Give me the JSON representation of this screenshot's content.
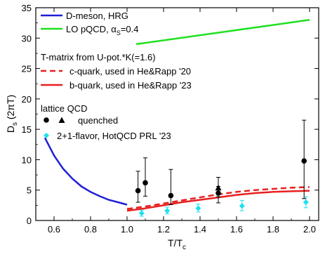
{
  "chart_data": {
    "type": "line",
    "title": "",
    "ylabel_main": "D",
    "ylabel_sub": "s",
    "ylabel_rest": " (2πT)",
    "xlabel_main": "T/T",
    "xlabel_sub": "c",
    "xlim": [
      0.5,
      2.05
    ],
    "ylim": [
      0,
      35
    ],
    "xticks": [
      0.6,
      0.8,
      1.0,
      1.2,
      1.4,
      1.6,
      1.8,
      2.0
    ],
    "xtick_labels": [
      "0.6",
      "0.8",
      "1.0",
      "1.2",
      "1.4",
      "1.6",
      "1.8",
      "2.0"
    ],
    "yticks": [
      0,
      5,
      10,
      15,
      20,
      25,
      30,
      35
    ],
    "ytick_labels": [
      "0",
      "5",
      "10",
      "15",
      "20",
      "25",
      "30",
      "35"
    ],
    "legend": {
      "hrg_label": "D-meson, HRG",
      "lo_main": "LO pQCD, α",
      "lo_sub": "S",
      "lo_rest": "=0.4",
      "tmatrix_heading": "T-matrix from U-pot.*K(=1.6)",
      "c_label": "c-quark, used in He&Rapp '20",
      "b_label": "b-quark, used in He&Rapp '23",
      "lattice_heading": "lattice QCD",
      "quenched_label": "quenched",
      "flavor_label": "2+1-flavor, HotQCD PRL '23"
    },
    "colors": {
      "hrg": "#1f1fd6",
      "lo_pqcd": "#1fe01f",
      "tmatrix": "#e82020",
      "quenched": "#000000",
      "hotqcd": "#1ee0ee"
    },
    "series": [
      {
        "name": "D-meson, HRG",
        "style": "solid",
        "x": [
          0.55,
          0.6,
          0.65,
          0.7,
          0.75,
          0.8,
          0.85,
          0.9,
          0.95,
          1.0
        ],
        "y": [
          13.6,
          10.7,
          8.5,
          6.9,
          5.6,
          4.7,
          4.0,
          3.4,
          3.0,
          2.6
        ]
      },
      {
        "name": "LO pQCD, αS=0.4",
        "style": "solid",
        "x": [
          1.05,
          2.0
        ],
        "y": [
          29.0,
          33.0
        ]
      },
      {
        "name": "c-quark, used in He&Rapp '20",
        "style": "dashed",
        "x": [
          1.0,
          1.1,
          1.2,
          1.3,
          1.4,
          1.5,
          1.6,
          1.7,
          1.8,
          1.9,
          2.0
        ],
        "y": [
          1.9,
          2.3,
          2.8,
          3.3,
          3.8,
          4.3,
          4.7,
          5.0,
          5.2,
          5.4,
          5.5
        ]
      },
      {
        "name": "b-quark, used in He&Rapp '23",
        "style": "solid",
        "x": [
          1.0,
          1.1,
          1.2,
          1.3,
          1.4,
          1.5,
          1.6,
          1.7,
          1.8,
          1.9,
          2.0
        ],
        "y": [
          1.6,
          2.0,
          2.5,
          3.0,
          3.4,
          3.8,
          4.2,
          4.5,
          4.7,
          4.8,
          4.9
        ]
      }
    ],
    "points": {
      "quenched_circles": [
        {
          "x": 1.06,
          "y": 4.9,
          "lo": 3.0,
          "hi": 8.1
        },
        {
          "x": 1.1,
          "y": 6.2,
          "lo": 4.0,
          "hi": 10.3
        },
        {
          "x": 1.24,
          "y": 4.1,
          "lo": 2.6,
          "hi": 8.4
        },
        {
          "x": 1.5,
          "y": 4.5,
          "lo": 2.9,
          "hi": 5.6
        },
        {
          "x": 1.97,
          "y": 9.8,
          "lo": 3.6,
          "hi": 16.5
        }
      ],
      "quenched_triangles": [
        {
          "x": 1.5,
          "y": 5.4,
          "lo": 3.9,
          "hi": 7.1
        }
      ],
      "hotqcd_diamonds": [
        {
          "x": 1.08,
          "y": 1.2,
          "lo": 0.7,
          "hi": 1.7
        },
        {
          "x": 1.22,
          "y": 1.6,
          "lo": 1.1,
          "hi": 2.2
        },
        {
          "x": 1.39,
          "y": 2.0,
          "lo": 1.4,
          "hi": 2.7
        },
        {
          "x": 1.63,
          "y": 2.4,
          "lo": 1.6,
          "hi": 3.3
        },
        {
          "x": 1.98,
          "y": 3.0,
          "lo": 2.1,
          "hi": 3.9
        }
      ]
    }
  }
}
